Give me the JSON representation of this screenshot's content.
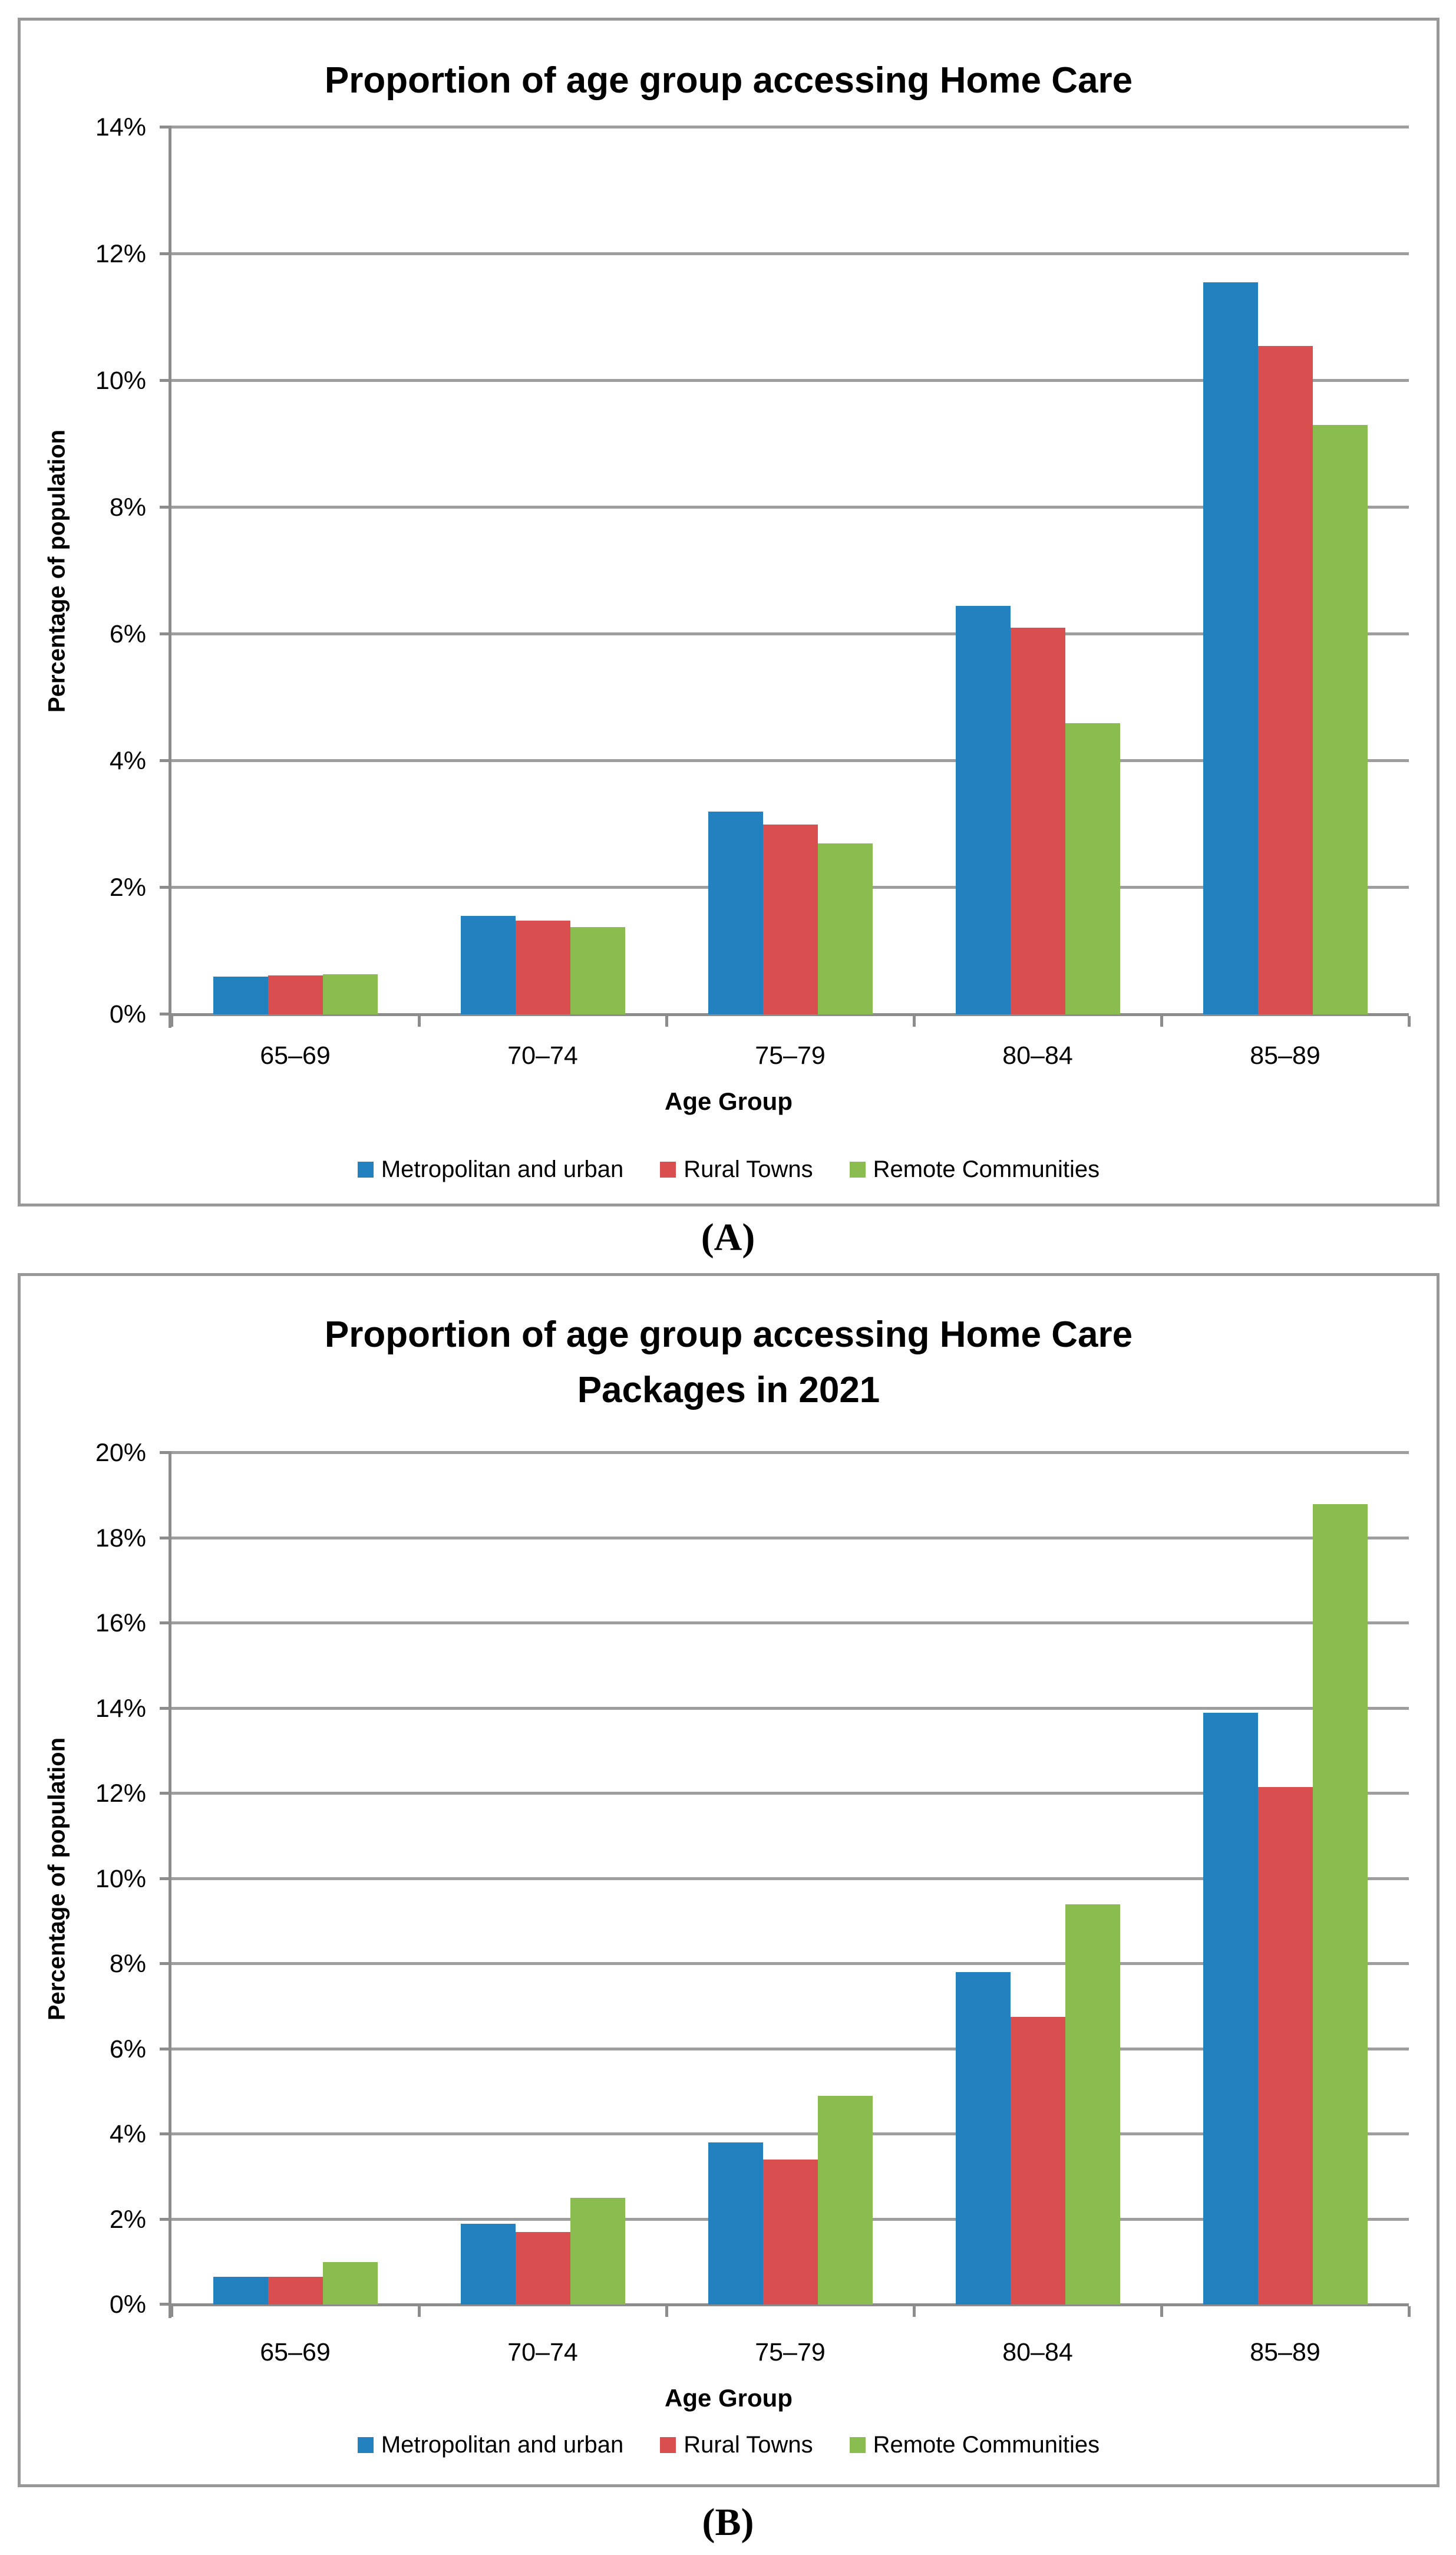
{
  "figure_labels": {
    "a": "(A)",
    "b": "(B)"
  },
  "chart_data": [
    {
      "type": "bar",
      "title": "Proportion of age group accessing Home Care",
      "title_lines": [
        "Proportion of age group accessing Home Care"
      ],
      "xlabel": "Age Group",
      "ylabel": "Percentage of population",
      "categories": [
        "65–69",
        "70–74",
        "75–79",
        "80–84",
        "85–89"
      ],
      "ylim": [
        0,
        14
      ],
      "ytick_step": 2,
      "ytick_labels": [
        "0%",
        "2%",
        "4%",
        "6%",
        "8%",
        "10%",
        "12%",
        "14%"
      ],
      "grid": true,
      "legend_position": "bottom",
      "series": [
        {
          "name": "Metropolitan and urban",
          "color": "#2481BF",
          "values": [
            0.6,
            1.55,
            3.2,
            6.45,
            11.55
          ]
        },
        {
          "name": "Rural Towns",
          "color": "#D94F4F",
          "values": [
            0.61,
            1.48,
            3.0,
            6.1,
            10.55
          ]
        },
        {
          "name": "Remote Communities",
          "color": "#8BBC50",
          "values": [
            0.63,
            1.38,
            2.7,
            4.6,
            9.3
          ]
        }
      ]
    },
    {
      "type": "bar",
      "title": "Proportion of age group accessing Home Care Packages in 2021",
      "title_lines": [
        "Proportion of age group accessing Home Care",
        "Packages in 2021"
      ],
      "xlabel": "Age Group",
      "ylabel": "Percentage of population",
      "categories": [
        "65–69",
        "70–74",
        "75–79",
        "80–84",
        "85–89"
      ],
      "ylim": [
        0,
        20
      ],
      "ytick_step": 2,
      "ytick_labels": [
        "0%",
        "2%",
        "4%",
        "6%",
        "8%",
        "10%",
        "12%",
        "14%",
        "16%",
        "18%",
        "20%"
      ],
      "grid": true,
      "legend_position": "bottom",
      "series": [
        {
          "name": "Metropolitan and urban",
          "color": "#2481BF",
          "values": [
            0.65,
            1.9,
            3.8,
            7.8,
            13.9
          ]
        },
        {
          "name": "Rural Towns",
          "color": "#D94F4F",
          "values": [
            0.65,
            1.7,
            3.4,
            6.75,
            12.15
          ]
        },
        {
          "name": "Remote Communities",
          "color": "#8BBC50",
          "values": [
            1.0,
            2.5,
            4.9,
            9.4,
            18.8
          ]
        }
      ]
    }
  ]
}
